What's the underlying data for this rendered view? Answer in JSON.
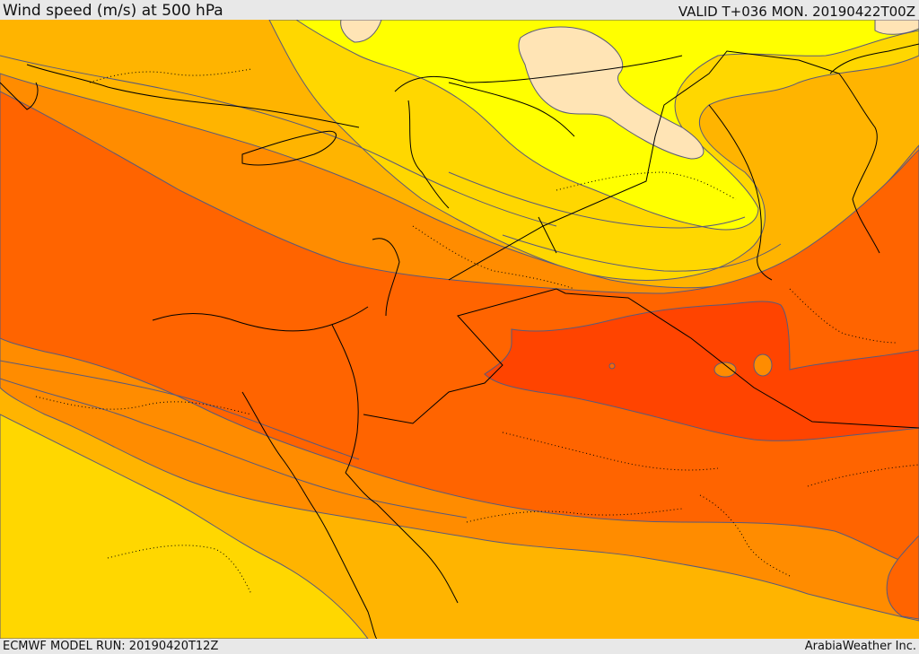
{
  "header": {
    "title": "Wind speed (m/s) at 500 hPa",
    "valid": "VALID T+036 MON. 20190422T00Z"
  },
  "footer": {
    "model_run": "ECMWF MODEL RUN: 20190420T12Z",
    "credit": "ArabiaWeather Inc."
  },
  "palette": {
    "band_1": "#ffe4b5",
    "band_2": "#ffff00",
    "band_3": "#ffd700",
    "band_4": "#ffb400",
    "band_5": "#ff8c00",
    "band_6": "#ff6400",
    "band_7": "#ff4400",
    "contour": "#5a5a7a",
    "border": "#000000"
  }
}
